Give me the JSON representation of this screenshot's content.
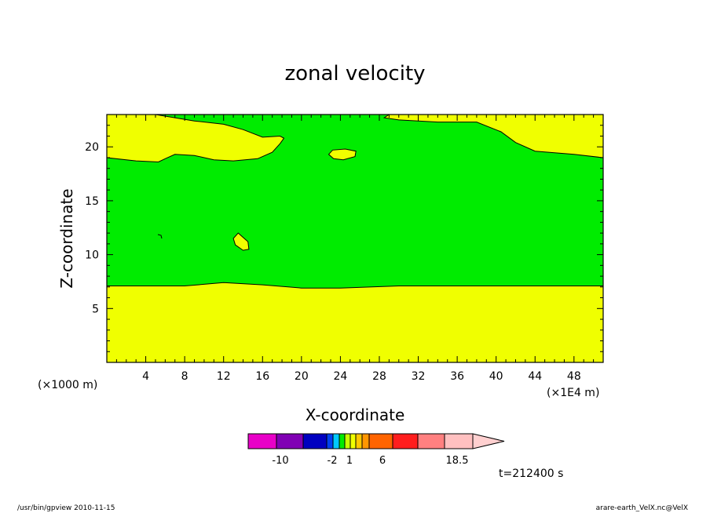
{
  "chart_data": {
    "type": "heatmap",
    "title": "zonal velocity",
    "xlabel": "X-coordinate",
    "ylabel": "Z-coordinate",
    "x_unit": "(×1E4 m)",
    "y_unit": "(×1000 m)",
    "xlim": [
      0,
      51
    ],
    "ylim": [
      0,
      23
    ],
    "x_ticks": [
      "4",
      "8",
      "12",
      "16",
      "20",
      "24",
      "28",
      "32",
      "36",
      "40",
      "44",
      "48"
    ],
    "y_ticks": [
      "5",
      "10",
      "15",
      "20"
    ],
    "regions": [
      {
        "name": "yellow-lower",
        "color": "#f0ff00",
        "points": [
          [
            0,
            0
          ],
          [
            51,
            0
          ],
          [
            51,
            7.1
          ],
          [
            40,
            7.1
          ],
          [
            30,
            7.1
          ],
          [
            24,
            6.9
          ],
          [
            20,
            6.9
          ],
          [
            16,
            7.2
          ],
          [
            12,
            7.4
          ],
          [
            8,
            7.1
          ],
          [
            0,
            7.1
          ]
        ]
      },
      {
        "name": "yellow-upper",
        "color": "#f0ff00",
        "points": [
          [
            0,
            23
          ],
          [
            0,
            19.0
          ],
          [
            3,
            18.7
          ],
          [
            5.3,
            18.6
          ],
          [
            6,
            18.9
          ],
          [
            7,
            19.3
          ],
          [
            9,
            19.2
          ],
          [
            11,
            18.8
          ],
          [
            13,
            18.7
          ],
          [
            15.5,
            18.9
          ],
          [
            17,
            19.5
          ],
          [
            17.8,
            20.3
          ],
          [
            18.2,
            20.8
          ],
          [
            17.8,
            21.0
          ],
          [
            16,
            20.9
          ],
          [
            14,
            21.6
          ],
          [
            12,
            22.1
          ],
          [
            9,
            22.4
          ],
          [
            5,
            23
          ],
          [
            29,
            23
          ],
          [
            28.5,
            22.7
          ],
          [
            30,
            22.5
          ],
          [
            34,
            22.3
          ],
          [
            38,
            22.3
          ],
          [
            40.5,
            21.4
          ],
          [
            42,
            20.4
          ],
          [
            44,
            19.6
          ],
          [
            48,
            19.3
          ],
          [
            51,
            19.0
          ],
          [
            51,
            23
          ]
        ]
      },
      {
        "name": "yellow-blob-24",
        "color": "#f0ff00",
        "points": [
          [
            22.8,
            19.3
          ],
          [
            23.2,
            19.7
          ],
          [
            24.5,
            19.8
          ],
          [
            25.6,
            19.6
          ],
          [
            25.5,
            19.1
          ],
          [
            24.3,
            18.8
          ],
          [
            23.3,
            18.9
          ]
        ]
      },
      {
        "name": "yellow-blob-13",
        "color": "#f0ff00",
        "points": [
          [
            13.0,
            11.5
          ],
          [
            13.5,
            12.0
          ],
          [
            14.5,
            11.2
          ],
          [
            14.6,
            10.5
          ],
          [
            14.0,
            10.4
          ],
          [
            13.2,
            10.9
          ]
        ]
      }
    ],
    "background_color": "#00ec00",
    "colorbar": {
      "labels": [
        "-10",
        "-2",
        "1",
        "6",
        "18.5"
      ],
      "colors": [
        "#e800c8",
        "#8000b4",
        "#0000c0",
        "#0040f0",
        "#00c8ff",
        "#00ec00",
        "#c8ff00",
        "#f0ff00",
        "#ffc800",
        "#ff9600",
        "#ff6400",
        "#ff1e1e",
        "#ff8080",
        "#ffc0c0",
        "#ffd0d0"
      ]
    }
  },
  "annotations": {
    "time": "t=212400 s",
    "footer_left": "/usr/bin/gpview   2010-11-15",
    "footer_right": "arare-earth_VelX.nc@VelX"
  }
}
